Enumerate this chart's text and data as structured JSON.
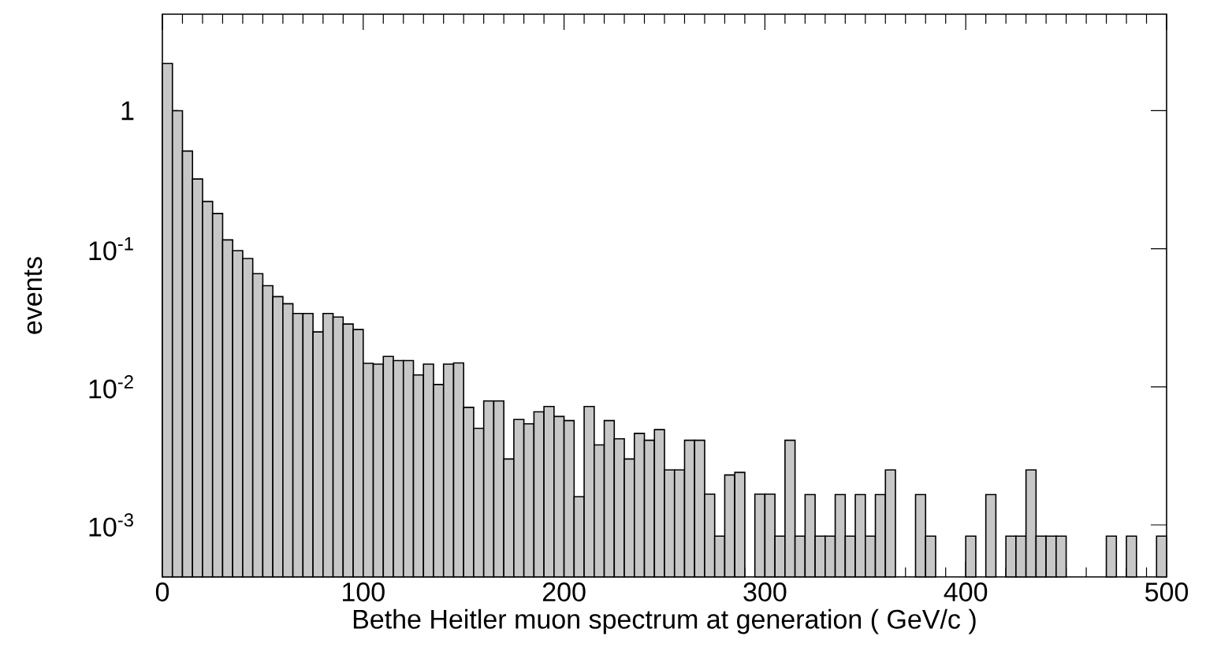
{
  "chart_data": {
    "type": "histogram",
    "xlabel": "Bethe Heitler muon spectrum at generation ( GeV/c )",
    "ylabel": "events",
    "color": "#000000",
    "log": true,
    "xlim": [
      0,
      500
    ],
    "xticks": [
      0,
      100,
      200,
      300,
      400,
      500
    ],
    "ylim": [
      0.00042,
      5
    ],
    "yticks": [
      {
        "value": 1,
        "label": "1"
      },
      {
        "value": 0.1,
        "label": "10$^{-1}$"
      },
      {
        "value": 0.01,
        "label": "10$^{-2}$"
      },
      {
        "value": 0.001,
        "label": "10$^{-3}$"
      }
    ],
    "bins": [
      0,
      5,
      10,
      15,
      20,
      25,
      30,
      35,
      40,
      45,
      50,
      55,
      60,
      65,
      70,
      75,
      80,
      85,
      90,
      95,
      100,
      105,
      110,
      115,
      120,
      125,
      130,
      135,
      140,
      145,
      150,
      155,
      160,
      165,
      170,
      175,
      180,
      185,
      190,
      195,
      200,
      205,
      210,
      215,
      220,
      225,
      230,
      235,
      240,
      245,
      250,
      255,
      260,
      265,
      270,
      275,
      280,
      285,
      290,
      295,
      300,
      305,
      310,
      315,
      320,
      325,
      330,
      335,
      340,
      345,
      350,
      355,
      360,
      365,
      370,
      375,
      380,
      385,
      390,
      395,
      400,
      405,
      410,
      415,
      420,
      425,
      430,
      435,
      440,
      445,
      450,
      455,
      460,
      465,
      470,
      475,
      480,
      485,
      490,
      495,
      500
    ],
    "values": [
      2.2,
      1.0,
      0.51,
      0.32,
      0.22,
      0.18,
      0.116,
      0.097,
      0.085,
      0.066,
      0.054,
      0.045,
      0.04,
      0.034,
      0.034,
      0.025,
      0.034,
      0.032,
      0.0285,
      0.026,
      0.0148,
      0.0146,
      0.0166,
      0.0155,
      0.0155,
      0.0122,
      0.0146,
      0.0104,
      0.0146,
      0.0149,
      0.0071,
      0.005,
      0.0079,
      0.0079,
      0.003,
      0.0058,
      0.0054,
      0.0066,
      0.0072,
      0.0061,
      0.0057,
      0.0016,
      0.0072,
      0.0038,
      0.0057,
      0.0042,
      0.003,
      0.0046,
      0.0041,
      0.0049,
      0.0025,
      0.0025,
      0.0041,
      0.0041,
      0.00167,
      0.00083,
      0.0023,
      0.0024,
      null,
      0.00167,
      0.00167,
      0.00083,
      0.0041,
      0.00083,
      0.00166,
      0.00083,
      0.00083,
      0.00166,
      0.00083,
      0.00166,
      0.00083,
      0.00166,
      0.0025,
      null,
      null,
      0.00166,
      0.00083,
      null,
      null,
      null,
      0.00083,
      null,
      0.00166,
      null,
      0.00083,
      0.00083,
      0.0025,
      0.00083,
      0.00083,
      0.00083,
      null,
      null,
      null,
      null,
      0.00083,
      null,
      0.00083,
      null,
      null,
      0.00083
    ]
  }
}
